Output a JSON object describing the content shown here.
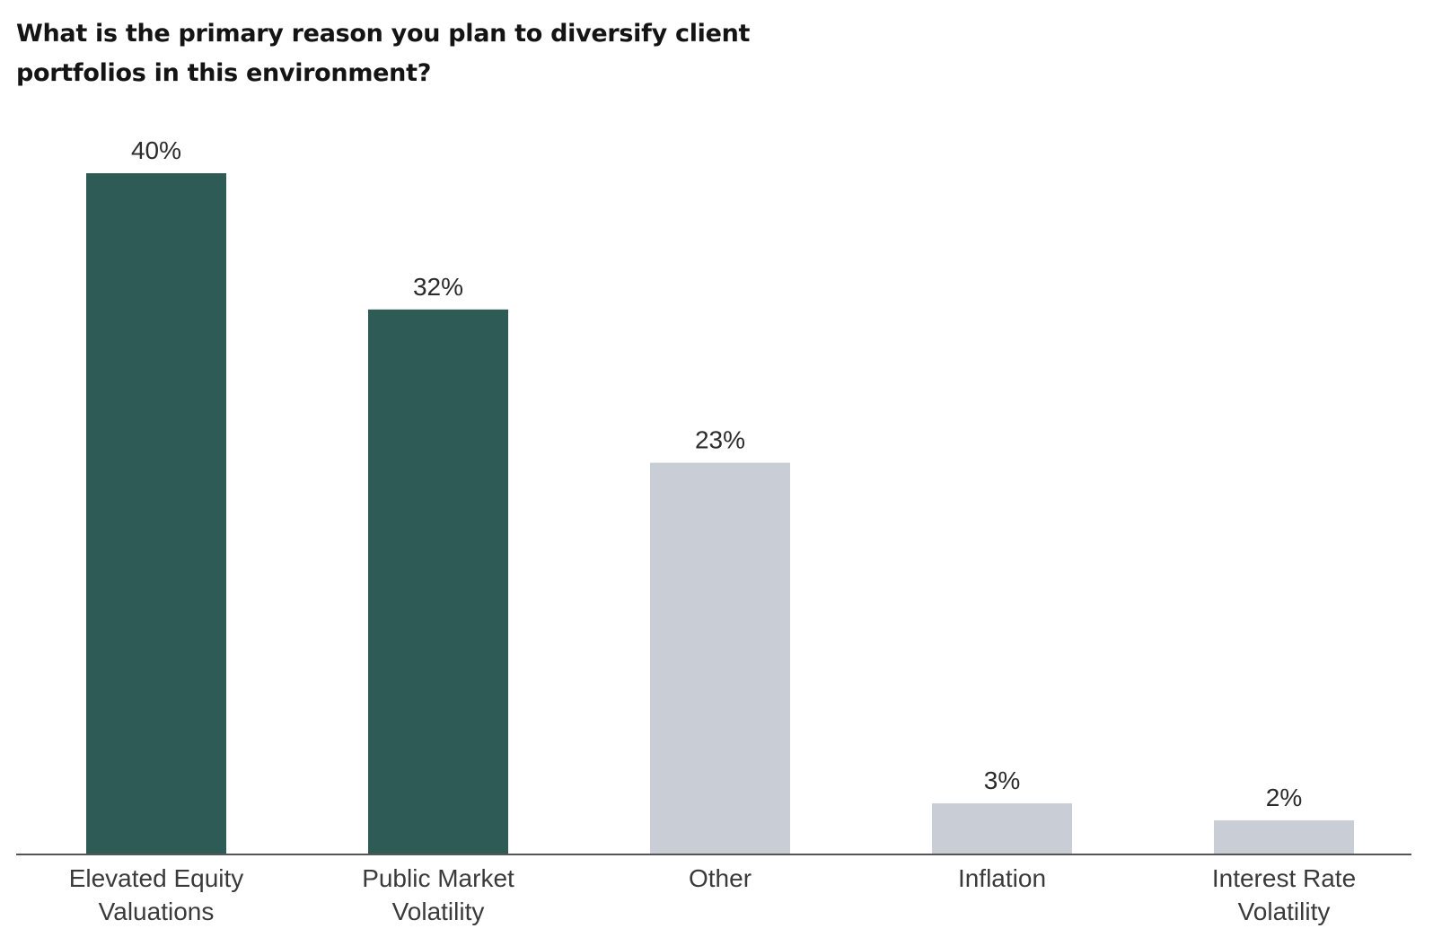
{
  "chart_data": {
    "type": "bar",
    "title": "What is the primary reason you plan to diversify client portfolios in this environment?",
    "categories": [
      [
        "Elevated Equity",
        "Valuations"
      ],
      [
        "Public Market",
        "Volatility"
      ],
      [
        "Other"
      ],
      [
        "Inflation"
      ],
      [
        "Interest Rate",
        "Volatility"
      ]
    ],
    "values": [
      40,
      32,
      23,
      3,
      2
    ],
    "value_labels": [
      "40%",
      "32%",
      "23%",
      "3%",
      "2%"
    ],
    "bar_colors": [
      "#2f5b57",
      "#2f5b57",
      "#c9cdd6",
      "#c9cdd6",
      "#c9cdd6"
    ],
    "baseline_color": "#555555",
    "unit": "%",
    "ylim": [
      0,
      40
    ],
    "grid": false,
    "legend": "none"
  }
}
